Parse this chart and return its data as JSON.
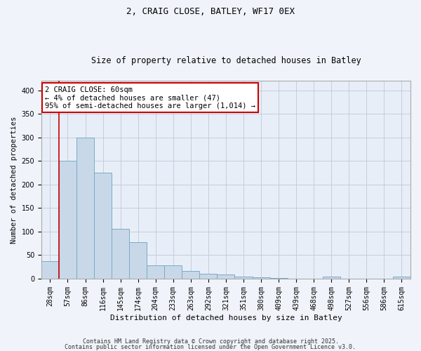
{
  "title1": "2, CRAIG CLOSE, BATLEY, WF17 0EX",
  "title2": "Size of property relative to detached houses in Batley",
  "xlabel": "Distribution of detached houses by size in Batley",
  "ylabel": "Number of detached properties",
  "categories": [
    "28sqm",
    "57sqm",
    "86sqm",
    "116sqm",
    "145sqm",
    "174sqm",
    "204sqm",
    "233sqm",
    "263sqm",
    "292sqm",
    "321sqm",
    "351sqm",
    "380sqm",
    "409sqm",
    "439sqm",
    "468sqm",
    "498sqm",
    "527sqm",
    "556sqm",
    "586sqm",
    "615sqm"
  ],
  "values": [
    38,
    250,
    300,
    225,
    106,
    78,
    28,
    28,
    17,
    11,
    9,
    4,
    3,
    2,
    0,
    0,
    4,
    0,
    0,
    0,
    4
  ],
  "bar_color": "#c8d8e8",
  "bar_edge_color": "#7aaac8",
  "vline_color": "#cc0000",
  "vline_x_idx": 1,
  "annotation_text": "2 CRAIG CLOSE: 60sqm\n← 4% of detached houses are smaller (47)\n95% of semi-detached houses are larger (1,014) →",
  "annotation_box_facecolor": "#ffffff",
  "annotation_box_edgecolor": "#cc0000",
  "ylim": [
    0,
    420
  ],
  "yticks": [
    0,
    50,
    100,
    150,
    200,
    250,
    300,
    350,
    400
  ],
  "grid_color": "#c0c8d8",
  "plot_bg_color": "#e8eef8",
  "fig_bg_color": "#f0f4fa",
  "title1_fontsize": 9,
  "title2_fontsize": 8.5,
  "xlabel_fontsize": 8,
  "ylabel_fontsize": 7.5,
  "tick_fontsize": 7,
  "annotation_fontsize": 7.5,
  "footer1": "Contains HM Land Registry data © Crown copyright and database right 2025.",
  "footer2": "Contains public sector information licensed under the Open Government Licence v3.0.",
  "footer_fontsize": 6
}
